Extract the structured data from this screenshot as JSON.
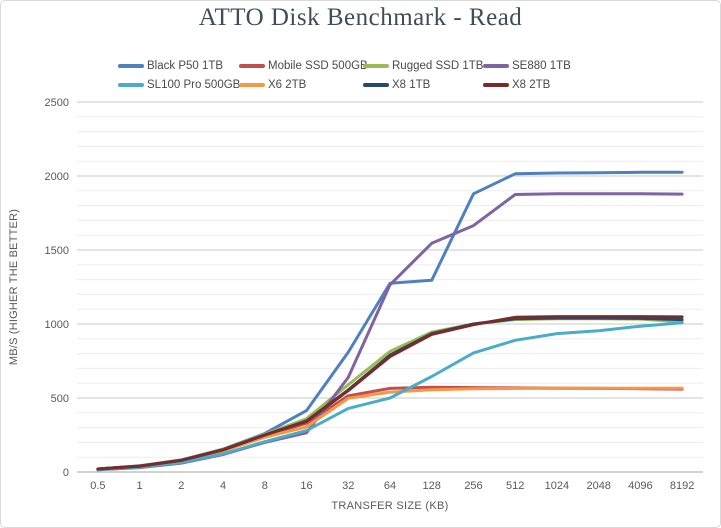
{
  "chart_data": {
    "type": "line",
    "title": "ATTO Disk Benchmark - Read",
    "xlabel": "TRANSFER SIZE (KB)",
    "ylabel": "MB/S (HIGHER THE BETTER)",
    "categories": [
      "0.5",
      "1",
      "2",
      "4",
      "8",
      "16",
      "32",
      "64",
      "128",
      "256",
      "512",
      "1024",
      "2048",
      "4096",
      "8192"
    ],
    "ylim": [
      0,
      2500
    ],
    "y_ticks": [
      0,
      500,
      1000,
      1500,
      2000,
      2500
    ],
    "y_minor_interval": 100,
    "grid": true,
    "legend_position": "top",
    "series": [
      {
        "name": "Black P50 1TB",
        "color": "#4F81BD",
        "values": [
          20,
          42,
          82,
          155,
          260,
          415,
          810,
          1275,
          1295,
          1880,
          2015,
          2020,
          2022,
          2025,
          2025
        ]
      },
      {
        "name": "Mobile SSD 500GB",
        "color": "#C0504D",
        "values": [
          20,
          40,
          78,
          148,
          245,
          330,
          515,
          565,
          572,
          570,
          568,
          566,
          565,
          563,
          560
        ]
      },
      {
        "name": "Rugged SSD 1TB",
        "color": "#9BBB59",
        "values": [
          20,
          41,
          80,
          152,
          255,
          360,
          590,
          815,
          945,
          1000,
          1030,
          1035,
          1035,
          1033,
          1015
        ]
      },
      {
        "name": "SE880 1TB",
        "color": "#8064A2",
        "values": [
          15,
          30,
          60,
          118,
          200,
          265,
          640,
          1265,
          1545,
          1665,
          1875,
          1880,
          1880,
          1880,
          1878
        ]
      },
      {
        "name": "SL100 Pro 500GB",
        "color": "#4BACC6",
        "values": [
          16,
          33,
          64,
          122,
          205,
          280,
          430,
          500,
          645,
          805,
          890,
          935,
          955,
          985,
          1008
        ]
      },
      {
        "name": "X6 2TB",
        "color": "#F79646",
        "values": [
          18,
          38,
          74,
          142,
          235,
          305,
          498,
          540,
          556,
          562,
          565,
          566,
          566,
          566,
          566
        ]
      },
      {
        "name": "X8 1TB",
        "color": "#27496B",
        "values": [
          20,
          40,
          79,
          150,
          250,
          345,
          555,
          790,
          935,
          1000,
          1035,
          1040,
          1040,
          1038,
          1030
        ]
      },
      {
        "name": "X8 2TB",
        "color": "#772C2A",
        "values": [
          20,
          40,
          79,
          150,
          250,
          342,
          550,
          780,
          930,
          995,
          1045,
          1050,
          1050,
          1050,
          1048
        ]
      }
    ],
    "style": {
      "title_color": "#3F4D5A",
      "tick_color": "#595959",
      "axis_title_color": "#595959",
      "major_grid_color": "#C9C9C9",
      "minor_grid_color": "#EDEDED",
      "axis_line_color": "#A6A6A6",
      "border_color": "#D9D9D9",
      "background": "#FFFFFF"
    }
  }
}
